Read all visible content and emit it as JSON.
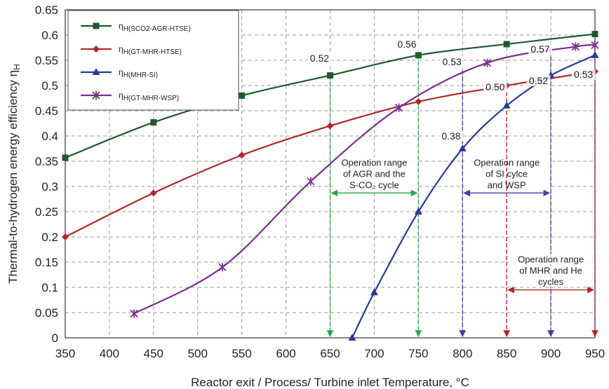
{
  "chart_data": {
    "type": "line",
    "xlabel": "Reactor exit / Process/ Turbine inlet Temperature, °C",
    "ylabel": "Thermal-to-hydrogen energy efficiency η",
    "ylabel_sub": "H",
    "xlim": [
      350,
      950
    ],
    "ylim": [
      0,
      0.65
    ],
    "x_ticks": [
      350,
      400,
      450,
      500,
      550,
      600,
      650,
      700,
      750,
      800,
      850,
      900,
      950
    ],
    "y_ticks": [
      0,
      0.05,
      0.1,
      0.15,
      0.2,
      0.25,
      0.3,
      0.35,
      0.4,
      0.45,
      0.5,
      0.55,
      0.6,
      0.65
    ],
    "grid": true,
    "legend_position": "top-left",
    "series": [
      {
        "name": "ηH(SCO2-AGR-HTSE)",
        "legend_main": "η",
        "legend_sub": "H(SCO2-AGR-HTSE)",
        "color": "#1f5a2a",
        "marker": "square",
        "x": [
          350,
          450,
          550,
          650,
          750,
          850,
          950
        ],
        "y": [
          0.357,
          0.427,
          0.48,
          0.52,
          0.56,
          0.582,
          0.602
        ]
      },
      {
        "name": "ηH(GT-MHR-HTSE)",
        "legend_main": "η",
        "legend_sub": "H(GT-MHR-HTSE)",
        "color": "#b0282a",
        "marker": "diamond",
        "x": [
          350,
          450,
          550,
          650,
          750,
          850,
          950
        ],
        "y": [
          0.2,
          0.287,
          0.362,
          0.42,
          0.468,
          0.5,
          0.528
        ]
      },
      {
        "name": "ηH(MHR-SI)",
        "legend_main": "η",
        "legend_sub": "H(MHR-SI)",
        "color": "#2a3a9a",
        "marker": "triangle",
        "x": [
          675,
          700,
          750,
          800,
          850,
          900,
          950
        ],
        "y": [
          0.0,
          0.09,
          0.25,
          0.375,
          0.46,
          0.52,
          0.56
        ]
      },
      {
        "name": "ηH(GT-MHR-WSP)",
        "legend_main": "η",
        "legend_sub": "H(GT-MHR-WSP)",
        "color": "#7a2f8f",
        "marker": "x",
        "x": [
          428,
          528,
          628,
          728,
          828,
          928,
          950
        ],
        "y": [
          0.048,
          0.14,
          0.31,
          0.456,
          0.545,
          0.577,
          0.58
        ]
      }
    ],
    "data_labels": [
      {
        "text": "0.52",
        "x": 638,
        "y": 0.547
      },
      {
        "text": "0.56",
        "x": 737,
        "y": 0.575
      },
      {
        "text": "0.53",
        "x": 788,
        "y": 0.54
      },
      {
        "text": "0.50",
        "x": 837,
        "y": 0.49
      },
      {
        "text": "0.57",
        "x": 888,
        "y": 0.565
      },
      {
        "text": "0.52",
        "x": 886,
        "y": 0.503
      },
      {
        "text": "0.53",
        "x": 937,
        "y": 0.515
      },
      {
        "text": "0.38",
        "x": 787,
        "y": 0.393
      }
    ],
    "operation_ranges": [
      {
        "lines": [
          "Operation range",
          "of AGR and the",
          "S-CO₂ cycle"
        ],
        "x0": 650,
        "x1": 750,
        "arrow_y": 0.287,
        "color": "#2aa84a",
        "vlines": [
          {
            "x": 650,
            "y_top": 0.52
          },
          {
            "x": 750,
            "y_top": 0.56
          }
        ]
      },
      {
        "lines": [
          "Operation range",
          "of SI cylce",
          "and WSP"
        ],
        "x0": 800,
        "x1": 900,
        "arrow_y": 0.287,
        "color": "#4a3aa0",
        "vlines": [
          {
            "x": 800,
            "y_top": 0.53
          },
          {
            "x": 900,
            "y_top": 0.57
          }
        ]
      },
      {
        "lines": [
          "Operation range",
          "of MHR and He",
          "cycles"
        ],
        "x0": 850,
        "x1": 950,
        "arrow_y": 0.095,
        "color": "#b0282a",
        "vlines": [
          {
            "x": 850,
            "y_top": 0.5
          },
          {
            "x": 950,
            "y_top": 0.53
          }
        ]
      }
    ]
  }
}
